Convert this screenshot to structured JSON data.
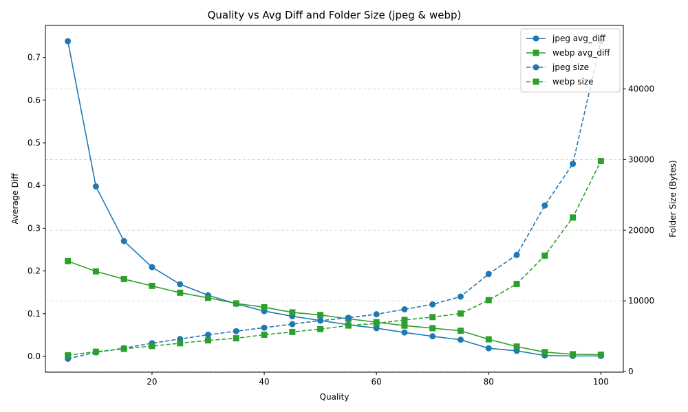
{
  "chart_data": {
    "type": "line",
    "title": "Quality vs Avg Diff and Folder Size (jpeg & webp)",
    "xlabel": "Quality",
    "ylabel": "Average Diff",
    "y2label": "Folder Size (Bytes)",
    "xlim": [
      1,
      104
    ],
    "ylim": [
      -0.037,
      0.775
    ],
    "y2lim": [
      -100,
      49000
    ],
    "x_ticks": [
      20,
      40,
      60,
      80,
      100
    ],
    "y_ticks": [
      0.0,
      0.1,
      0.2,
      0.3,
      0.4,
      0.5,
      0.6,
      0.7
    ],
    "y_tick_labels": [
      "0.0",
      "0.1",
      "0.2",
      "0.3",
      "0.4",
      "0.5",
      "0.6",
      "0.7"
    ],
    "y2_ticks": [
      0,
      10000,
      20000,
      30000,
      40000
    ],
    "y2_tick_labels": [
      "0",
      "10000",
      "20000",
      "30000",
      "40000"
    ],
    "grid": "horizontal dashed (right axis)",
    "legend_position": "top-right",
    "x": [
      5,
      10,
      15,
      20,
      25,
      30,
      35,
      40,
      45,
      50,
      55,
      60,
      65,
      70,
      75,
      80,
      85,
      90,
      95,
      100
    ],
    "series": [
      {
        "name": "jpeg avg_diff",
        "axis": "left",
        "color": "#1f77b4",
        "style": "solid",
        "marker": "circle",
        "values": [
          0.738,
          0.398,
          0.27,
          0.209,
          0.169,
          0.143,
          0.123,
          0.106,
          0.094,
          0.084,
          0.074,
          0.066,
          0.056,
          0.047,
          0.039,
          0.019,
          0.013,
          0.002,
          0.001,
          0.001
        ]
      },
      {
        "name": "webp avg_diff",
        "axis": "left",
        "color": "#2ca02c",
        "style": "solid",
        "marker": "square",
        "values": [
          0.223,
          0.199,
          0.181,
          0.165,
          0.149,
          0.137,
          0.124,
          0.115,
          0.103,
          0.097,
          0.088,
          0.08,
          0.072,
          0.066,
          0.06,
          0.04,
          0.023,
          0.01,
          0.005,
          0.004
        ]
      },
      {
        "name": "jpeg size",
        "axis": "right",
        "color": "#1f77b4",
        "style": "dashed",
        "marker": "circle",
        "values": [
          1800,
          2700,
          3300,
          4000,
          4600,
          5200,
          5700,
          6200,
          6700,
          7200,
          7600,
          8100,
          8800,
          9500,
          10600,
          13800,
          16500,
          23500,
          29400,
          46800
        ]
      },
      {
        "name": "webp size",
        "axis": "right",
        "color": "#2ca02c",
        "style": "dashed",
        "marker": "square",
        "values": [
          2300,
          2800,
          3200,
          3600,
          4000,
          4400,
          4700,
          5200,
          5600,
          6000,
          6500,
          6800,
          7300,
          7700,
          8200,
          10100,
          12400,
          16400,
          21800,
          29800
        ]
      }
    ]
  }
}
